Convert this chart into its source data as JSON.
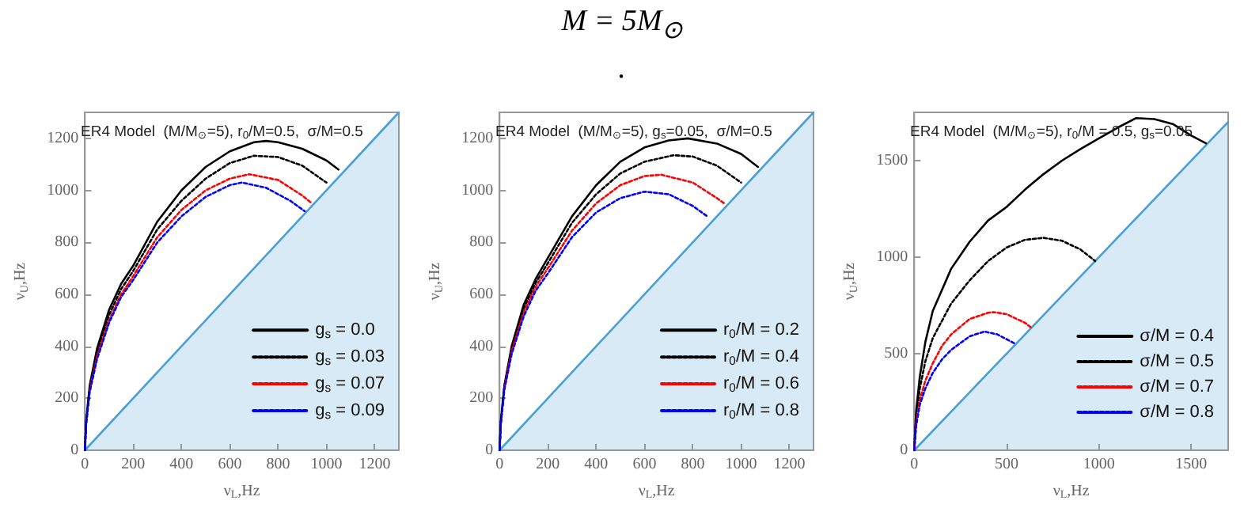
{
  "chart_data": [
    {
      "type": "line",
      "title": "ER4 Model  (M/M$_{⊙}$=5), r$_{0}$/M=0.5,  σ/M=0.5",
      "xlabel": "ν$_{L}$,Hz",
      "ylabel": "ν$_{U}$,Hz",
      "annotations": [
        "M = 5M$_{⊙}$",
        "."
      ],
      "xlim": [
        0,
        1300
      ],
      "xticks": [
        0,
        200,
        400,
        600,
        800,
        1000,
        1200
      ],
      "ylim": [
        0,
        1300
      ],
      "yticks": [
        0,
        200,
        400,
        600,
        800,
        1000,
        1200
      ],
      "legend": "bottom right",
      "marker": "none",
      "grid": false,
      "series": [
        {
          "type": "area",
          "color": "#4a9fd4",
          "line_style": "solid",
          "x": [
            0,
            1300
          ],
          "values": [
            0,
            1300
          ]
        },
        {
          "name": "g$_{s}$ = 0.0",
          "color": "#000000",
          "line_style": "solid",
          "x": [
            0,
            5,
            20,
            50,
            100,
            150,
            200,
            300,
            400,
            500,
            600,
            700,
            750,
            800,
            900,
            1000,
            1050
          ],
          "values": [
            0,
            110,
            250,
            390,
            540,
            640,
            710,
            880,
            1000,
            1090,
            1150,
            1185,
            1190,
            1185,
            1160,
            1115,
            1080
          ]
        },
        {
          "name": "g$_{s}$ = 0.03",
          "color": "#000000",
          "line_style": "dashed",
          "x": [
            0,
            5,
            20,
            50,
            100,
            150,
            200,
            300,
            400,
            500,
            600,
            700,
            800,
            900,
            1000
          ],
          "values": [
            0,
            105,
            240,
            375,
            520,
            620,
            690,
            850,
            960,
            1045,
            1105,
            1133,
            1128,
            1095,
            1030
          ]
        },
        {
          "name": "g$_{s}$ = 0.07",
          "color": "#ff0000",
          "line_style": "dashed",
          "x": [
            20,
            50,
            100,
            150,
            200,
            300,
            400,
            500,
            600,
            680,
            800,
            900,
            940
          ],
          "values": [
            230,
            360,
            500,
            600,
            670,
            820,
            925,
            1000,
            1045,
            1062,
            1040,
            980,
            950
          ]
        },
        {
          "name": "g$_{s}$ = 0.09",
          "color": "#0000ff",
          "line_style": "dashed",
          "x": [
            0,
            5,
            20,
            50,
            100,
            150,
            200,
            300,
            400,
            500,
            600,
            650,
            750,
            850,
            910
          ],
          "values": [
            0,
            98,
            225,
            350,
            490,
            590,
            655,
            800,
            900,
            975,
            1020,
            1030,
            1010,
            960,
            920
          ]
        }
      ]
    },
    {
      "type": "line",
      "title": "ER4 Model  (M/M$_{⊙}$=5), g$_{s}$=0.05,  σ/M=0.5",
      "xlabel": "ν$_{L}$,Hz",
      "ylabel": "ν$_{U}$,Hz",
      "xlim": [
        0,
        1300
      ],
      "xticks": [
        0,
        200,
        400,
        600,
        800,
        1000,
        1200
      ],
      "ylim": [
        0,
        1300
      ],
      "yticks": [
        0,
        200,
        400,
        600,
        800,
        1000,
        1200
      ],
      "legend": "bottom right",
      "marker": "none",
      "grid": false,
      "series": [
        {
          "type": "area",
          "color": "#4a9fd4",
          "line_style": "solid",
          "x": [
            0,
            1300
          ],
          "values": [
            0,
            1300
          ]
        },
        {
          "name": "r$_{0}$/M = 0.2",
          "color": "#000000",
          "line_style": "solid",
          "x": [
            0,
            5,
            20,
            50,
            100,
            150,
            200,
            300,
            400,
            500,
            600,
            700,
            780,
            900,
            1000,
            1070
          ],
          "values": [
            0,
            110,
            250,
            400,
            560,
            660,
            740,
            900,
            1020,
            1110,
            1165,
            1192,
            1200,
            1180,
            1140,
            1090
          ]
        },
        {
          "name": "r$_{0}$/M = 0.4",
          "color": "#000000",
          "line_style": "dashed",
          "x": [
            0,
            5,
            20,
            50,
            100,
            150,
            200,
            300,
            400,
            500,
            600,
            720,
            800,
            900,
            1000
          ],
          "values": [
            0,
            105,
            245,
            390,
            545,
            645,
            720,
            875,
            985,
            1065,
            1110,
            1135,
            1130,
            1095,
            1030
          ]
        },
        {
          "name": "r$_{0}$/M = 0.6",
          "color": "#ff0000",
          "line_style": "dashed",
          "x": [
            20,
            50,
            100,
            150,
            200,
            300,
            400,
            500,
            600,
            670,
            800,
            900,
            930
          ],
          "values": [
            240,
            380,
            530,
            630,
            700,
            845,
            950,
            1020,
            1055,
            1060,
            1030,
            970,
            950
          ]
        },
        {
          "name": "r$_{0}$/M = 0.8",
          "color": "#0000ff",
          "line_style": "dashed",
          "x": [
            0,
            5,
            20,
            50,
            100,
            150,
            200,
            300,
            400,
            500,
            600,
            700,
            800,
            860
          ],
          "values": [
            0,
            98,
            235,
            370,
            515,
            615,
            680,
            820,
            915,
            970,
            995,
            985,
            940,
            900
          ]
        }
      ]
    },
    {
      "type": "line",
      "title": "ER4 Model  (M/M$_{⊙}$=5), r$_{0}$/M = 0.5, g$_{s}$=0.05",
      "xlabel": "ν$_{L}$,Hz",
      "ylabel": "ν$_{U}$,Hz",
      "xlim": [
        0,
        1700
      ],
      "xticks": [
        0,
        500,
        1000,
        1500
      ],
      "ylim": [
        0,
        1750
      ],
      "yticks": [
        0,
        500,
        1000,
        1500
      ],
      "legend": "bottom right",
      "marker": "none",
      "grid": false,
      "series": [
        {
          "type": "area",
          "color": "#4a9fd4",
          "line_style": "solid",
          "x": [
            0,
            1700
          ],
          "values": [
            0,
            1700
          ]
        },
        {
          "name": "σ/M = 0.4",
          "color": "#000000",
          "line_style": "solid",
          "x": [
            0,
            10,
            30,
            60,
            100,
            200,
            300,
            400,
            500,
            600,
            700,
            800,
            900,
            1000,
            1100,
            1200,
            1300,
            1400,
            1500,
            1580
          ],
          "values": [
            0,
            200,
            380,
            560,
            720,
            940,
            1080,
            1190,
            1260,
            1350,
            1430,
            1500,
            1560,
            1615,
            1670,
            1720,
            1715,
            1690,
            1630,
            1590
          ]
        },
        {
          "name": "σ/M = 0.5",
          "color": "#000000",
          "line_style": "dashed",
          "x": [
            0,
            10,
            30,
            60,
            100,
            200,
            300,
            400,
            500,
            600,
            700,
            800,
            900,
            980
          ],
          "values": [
            0,
            170,
            320,
            460,
            580,
            760,
            880,
            980,
            1050,
            1090,
            1100,
            1085,
            1040,
            980
          ]
        },
        {
          "name": "σ/M = 0.7",
          "color": "#ff0000",
          "line_style": "dashed",
          "x": [
            0,
            10,
            30,
            60,
            100,
            150,
            200,
            300,
            400,
            430,
            500,
            600,
            640
          ],
          "values": [
            0,
            140,
            260,
            360,
            450,
            540,
            600,
            680,
            712,
            715,
            705,
            660,
            630
          ]
        },
        {
          "name": "σ/M = 0.8",
          "color": "#0000ff",
          "line_style": "dashed",
          "x": [
            0,
            10,
            30,
            60,
            100,
            150,
            200,
            300,
            380,
            450,
            550
          ],
          "values": [
            0,
            125,
            235,
            320,
            400,
            470,
            520,
            590,
            615,
            600,
            550
          ]
        }
      ]
    }
  ]
}
